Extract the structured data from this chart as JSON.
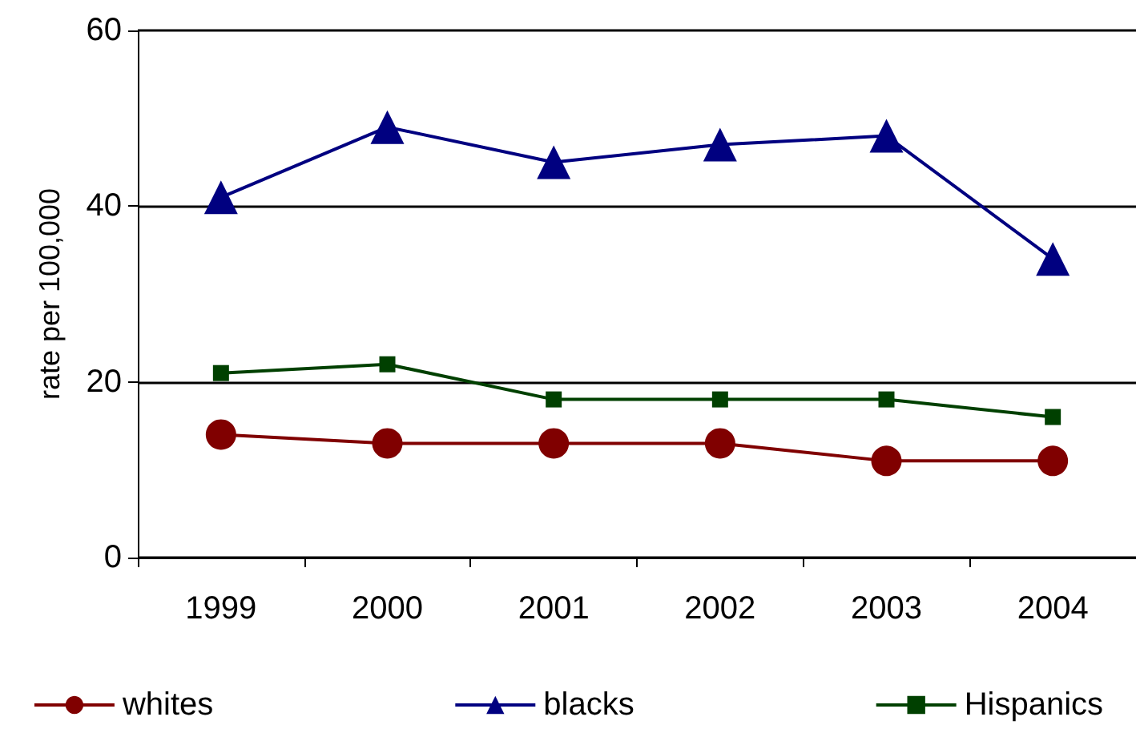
{
  "chart_data": {
    "type": "line",
    "ylabel": "rate per 100,000",
    "categories": [
      "1999",
      "2000",
      "2001",
      "2002",
      "2003",
      "2004"
    ],
    "series": [
      {
        "name": "whites",
        "color": "#800000",
        "marker": "circle",
        "values": [
          14,
          13,
          13,
          13,
          11,
          11
        ]
      },
      {
        "name": "blacks",
        "color": "#000080",
        "marker": "triangle",
        "values": [
          41,
          49,
          45,
          47,
          48,
          34
        ]
      },
      {
        "name": "Hispanics",
        "color": "#004000",
        "marker": "square",
        "values": [
          21,
          22,
          18,
          18,
          18,
          16
        ]
      }
    ],
    "ylim": [
      0,
      60
    ],
    "yticks": [
      0,
      20,
      40,
      60
    ],
    "grid": "y",
    "legend": "bottom"
  }
}
